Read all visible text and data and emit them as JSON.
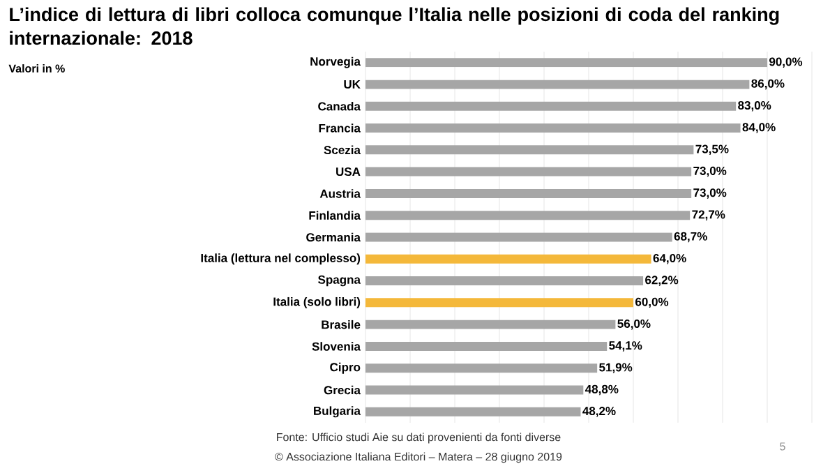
{
  "chart_data": {
    "type": "bar",
    "orientation": "horizontal",
    "title": "L’indice di lettura di libri colloca comunque l’Italia nelle posizioni di coda del ranking internazionale: 2018",
    "subtitle": "Valori  in %",
    "categories": [
      "Norvegia",
      "UK",
      "Canada",
      "Francia",
      "Scezia",
      "USA",
      "Austria",
      "Finlandia",
      "Germania",
      "Italia (lettura nel complesso)",
      "Spagna",
      "Italia (solo libri)",
      "Brasile",
      "Slovenia",
      "Cipro",
      "Grecia",
      "Bulgaria"
    ],
    "values": [
      90,
      86,
      83,
      84,
      73.5,
      73,
      73,
      72.7,
      68.7,
      64,
      62.2,
      60,
      56,
      54.1,
      51.9,
      48.8,
      48.2
    ],
    "value_labels": [
      "90,0%",
      "86,0%",
      "83,0%",
      "84,0%",
      "73,5%",
      "73,0%",
      "73,0%",
      "72,7%",
      "68,7%",
      "64,0%",
      "62,2%",
      "60,0%",
      "56,0%",
      "54,1%",
      "51,9%",
      "48,8%",
      "48,2%"
    ],
    "colors": [
      "#a6a6a6",
      "#a6a6a6",
      "#a6a6a6",
      "#a6a6a6",
      "#a6a6a6",
      "#a6a6a6",
      "#a6a6a6",
      "#a6a6a6",
      "#a6a6a6",
      "#f4b83a",
      "#a6a6a6",
      "#f4b83a",
      "#a6a6a6",
      "#a6a6a6",
      "#a6a6a6",
      "#a6a6a6",
      "#a6a6a6"
    ],
    "xlim": [
      0,
      100
    ],
    "xticks": [
      {
        "value": 0,
        "label": null
      },
      {
        "value": 10,
        "label": null
      },
      {
        "value": 20,
        "label": null
      },
      {
        "value": 30,
        "label": null
      },
      {
        "value": 40,
        "label": null
      },
      {
        "value": 50,
        "label": null
      },
      {
        "value": 60,
        "label": null
      },
      {
        "value": 70,
        "label": null
      },
      {
        "value": 80,
        "label": null
      },
      {
        "value": 90,
        "label": null
      },
      {
        "value": 100,
        "label": null
      }
    ],
    "grid": "x",
    "tick_labels": "y",
    "annotations": [
      "Fonte:  Ufficio studi Aie su  dati  provenienti da fonti diverse",
      "© Associazione Italiana Editori – Matera – 28 giugno 2019",
      "5"
    ]
  }
}
